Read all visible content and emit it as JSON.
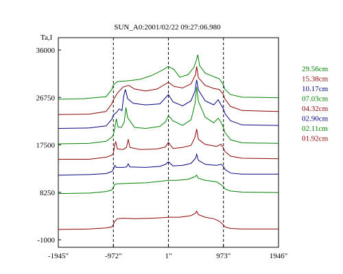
{
  "chart_data": {
    "type": "line",
    "title": "SUN_A0:2001/02/22 09:27:06.980",
    "ylabel": "Ta,I",
    "xlabel": "",
    "xlim": [
      -1945,
      1946
    ],
    "ylim": [
      -1000,
      36000
    ],
    "x_ticks": [
      -1945,
      -972,
      1,
      973,
      1946
    ],
    "x_tick_labels": [
      "-1945\"",
      "-972\"",
      "1\"",
      "973\"",
      "1946\""
    ],
    "y_ticks": [
      -1000,
      8250,
      17500,
      26750,
      36000
    ],
    "y_tick_labels": [
      "-1000",
      "8250",
      "17500",
      "26750",
      "36000"
    ],
    "vlines": [
      -972,
      1,
      973
    ],
    "grid": false,
    "legend_position": "right",
    "colors": {
      "green": "#008000",
      "red": "#8b0000",
      "blue": "#000080"
    },
    "series": [
      {
        "name": "29.56cm",
        "color": "#008000",
        "points": [
          [
            -1945,
            26400
          ],
          [
            -1500,
            26500
          ],
          [
            -1100,
            26900
          ],
          [
            -1000,
            28300
          ],
          [
            -972,
            29200
          ],
          [
            -900,
            29850
          ],
          [
            -700,
            30000
          ],
          [
            -500,
            30300
          ],
          [
            -300,
            31000
          ],
          [
            -100,
            32100
          ],
          [
            1,
            32800
          ],
          [
            100,
            32200
          ],
          [
            200,
            30700
          ],
          [
            350,
            31200
          ],
          [
            450,
            32600
          ],
          [
            500,
            34200
          ],
          [
            520,
            35100
          ],
          [
            550,
            33000
          ],
          [
            650,
            31500
          ],
          [
            800,
            30800
          ],
          [
            900,
            30400
          ],
          [
            973,
            29200
          ],
          [
            1000,
            28300
          ],
          [
            1100,
            27300
          ],
          [
            1300,
            26800
          ],
          [
            1946,
            26700
          ]
        ]
      },
      {
        "name": "15.38cm",
        "color": "#8b0000",
        "points": [
          [
            -1945,
            23400
          ],
          [
            -1400,
            23500
          ],
          [
            -1100,
            24000
          ],
          [
            -1000,
            25500
          ],
          [
            -972,
            26300
          ],
          [
            -900,
            27600
          ],
          [
            -800,
            28800
          ],
          [
            -700,
            29100
          ],
          [
            -600,
            28400
          ],
          [
            -400,
            28000
          ],
          [
            -200,
            28400
          ],
          [
            1,
            29700
          ],
          [
            100,
            28900
          ],
          [
            250,
            28600
          ],
          [
            400,
            29400
          ],
          [
            480,
            31200
          ],
          [
            500,
            32800
          ],
          [
            530,
            30600
          ],
          [
            650,
            29100
          ],
          [
            800,
            28500
          ],
          [
            900,
            28300
          ],
          [
            973,
            27300
          ],
          [
            1000,
            26400
          ],
          [
            1100,
            25000
          ],
          [
            1300,
            24200
          ],
          [
            1946,
            24000
          ]
        ]
      },
      {
        "name": "10.17cm",
        "color": "#000080",
        "points": [
          [
            -1945,
            20700
          ],
          [
            -1400,
            20800
          ],
          [
            -1100,
            21200
          ],
          [
            -1000,
            22500
          ],
          [
            -972,
            23300
          ],
          [
            -920,
            23800
          ],
          [
            -870,
            24500
          ],
          [
            -820,
            24200
          ],
          [
            -790,
            27000
          ],
          [
            -760,
            28300
          ],
          [
            -720,
            26500
          ],
          [
            -620,
            25600
          ],
          [
            -400,
            25300
          ],
          [
            -150,
            25500
          ],
          [
            1,
            27300
          ],
          [
            80,
            25900
          ],
          [
            250,
            25100
          ],
          [
            400,
            26100
          ],
          [
            470,
            28000
          ],
          [
            500,
            30200
          ],
          [
            530,
            28200
          ],
          [
            650,
            26100
          ],
          [
            800,
            25300
          ],
          [
            880,
            26300
          ],
          [
            920,
            25500
          ],
          [
            973,
            24500
          ],
          [
            1000,
            23600
          ],
          [
            1100,
            22200
          ],
          [
            1300,
            21400
          ],
          [
            1946,
            21300
          ]
        ]
      },
      {
        "name": "07.03cm",
        "color": "#008000",
        "points": [
          [
            -1945,
            17700
          ],
          [
            -1400,
            17800
          ],
          [
            -1100,
            18200
          ],
          [
            -1000,
            19000
          ],
          [
            -972,
            19500
          ],
          [
            -950,
            20600
          ],
          [
            -920,
            22600
          ],
          [
            -890,
            21000
          ],
          [
            -830,
            20900
          ],
          [
            -780,
            22000
          ],
          [
            -750,
            24800
          ],
          [
            -720,
            22800
          ],
          [
            -600,
            20900
          ],
          [
            -400,
            20700
          ],
          [
            -150,
            21100
          ],
          [
            -50,
            22000
          ],
          [
            1,
            23200
          ],
          [
            80,
            22200
          ],
          [
            250,
            21300
          ],
          [
            400,
            22400
          ],
          [
            470,
            25500
          ],
          [
            500,
            28800
          ],
          [
            530,
            26000
          ],
          [
            650,
            22900
          ],
          [
            800,
            21800
          ],
          [
            880,
            22700
          ],
          [
            920,
            22100
          ],
          [
            973,
            20900
          ],
          [
            1000,
            19900
          ],
          [
            1100,
            18500
          ],
          [
            1300,
            17900
          ],
          [
            1946,
            17800
          ]
        ]
      },
      {
        "name": "04.32cm",
        "color": "#8b0000",
        "points": [
          [
            -1945,
            14700
          ],
          [
            -1400,
            14700
          ],
          [
            -1100,
            15100
          ],
          [
            -1000,
            15500
          ],
          [
            -972,
            15900
          ],
          [
            -945,
            17700
          ],
          [
            -930,
            18100
          ],
          [
            -900,
            16700
          ],
          [
            -800,
            16600
          ],
          [
            -740,
            17000
          ],
          [
            -710,
            18600
          ],
          [
            -680,
            17000
          ],
          [
            -500,
            16600
          ],
          [
            -200,
            16700
          ],
          [
            -50,
            17100
          ],
          [
            1,
            18000
          ],
          [
            80,
            16800
          ],
          [
            250,
            17000
          ],
          [
            400,
            17400
          ],
          [
            470,
            19000
          ],
          [
            500,
            20600
          ],
          [
            530,
            18600
          ],
          [
            650,
            17600
          ],
          [
            850,
            17200
          ],
          [
            930,
            17600
          ],
          [
            973,
            16900
          ],
          [
            1000,
            16200
          ],
          [
            1100,
            15300
          ],
          [
            1300,
            14900
          ],
          [
            1946,
            14800
          ]
        ]
      },
      {
        "name": "02.90cm",
        "color": "#000080",
        "points": [
          [
            -1945,
            11600
          ],
          [
            -1400,
            11700
          ],
          [
            -1100,
            11900
          ],
          [
            -1000,
            12300
          ],
          [
            -972,
            12700
          ],
          [
            -945,
            13500
          ],
          [
            -920,
            13100
          ],
          [
            -800,
            13100
          ],
          [
            -740,
            13200
          ],
          [
            -710,
            13800
          ],
          [
            -680,
            13200
          ],
          [
            -400,
            13100
          ],
          [
            -150,
            13300
          ],
          [
            -50,
            13700
          ],
          [
            1,
            14200
          ],
          [
            80,
            13400
          ],
          [
            250,
            13500
          ],
          [
            400,
            13900
          ],
          [
            480,
            14900
          ],
          [
            500,
            15700
          ],
          [
            530,
            14500
          ],
          [
            650,
            13700
          ],
          [
            850,
            13500
          ],
          [
            930,
            13700
          ],
          [
            973,
            13300
          ],
          [
            1000,
            12700
          ],
          [
            1100,
            12000
          ],
          [
            1300,
            11800
          ],
          [
            1946,
            11800
          ]
        ]
      },
      {
        "name": "02.11cm",
        "color": "#008000",
        "points": [
          [
            -1945,
            8000
          ],
          [
            -1400,
            8100
          ],
          [
            -1100,
            8400
          ],
          [
            -1000,
            8700
          ],
          [
            -972,
            9300
          ],
          [
            -945,
            9800
          ],
          [
            -900,
            9900
          ],
          [
            -700,
            10000
          ],
          [
            -400,
            10100
          ],
          [
            -150,
            10400
          ],
          [
            1,
            10600
          ],
          [
            150,
            10600
          ],
          [
            350,
            10800
          ],
          [
            470,
            11300
          ],
          [
            500,
            11600
          ],
          [
            530,
            11000
          ],
          [
            650,
            10600
          ],
          [
            850,
            10300
          ],
          [
            973,
            9400
          ],
          [
            1000,
            8900
          ],
          [
            1100,
            8500
          ],
          [
            1300,
            8300
          ],
          [
            1946,
            8200
          ]
        ]
      },
      {
        "name": "01.92cm",
        "color": "#8b0000",
        "points": [
          [
            -1945,
            1000
          ],
          [
            -1400,
            1100
          ],
          [
            -1100,
            1300
          ],
          [
            -1000,
            1500
          ],
          [
            -972,
            2000
          ],
          [
            -945,
            2600
          ],
          [
            -900,
            3100
          ],
          [
            -800,
            3200
          ],
          [
            -600,
            3100
          ],
          [
            -300,
            3200
          ],
          [
            -100,
            3300
          ],
          [
            1,
            3400
          ],
          [
            200,
            3400
          ],
          [
            400,
            3700
          ],
          [
            480,
            4200
          ],
          [
            500,
            4600
          ],
          [
            530,
            3900
          ],
          [
            650,
            3400
          ],
          [
            800,
            3100
          ],
          [
            900,
            2600
          ],
          [
            973,
            1900
          ],
          [
            1000,
            1500
          ],
          [
            1100,
            1200
          ],
          [
            1300,
            1100
          ],
          [
            1946,
            1100
          ]
        ]
      }
    ]
  }
}
